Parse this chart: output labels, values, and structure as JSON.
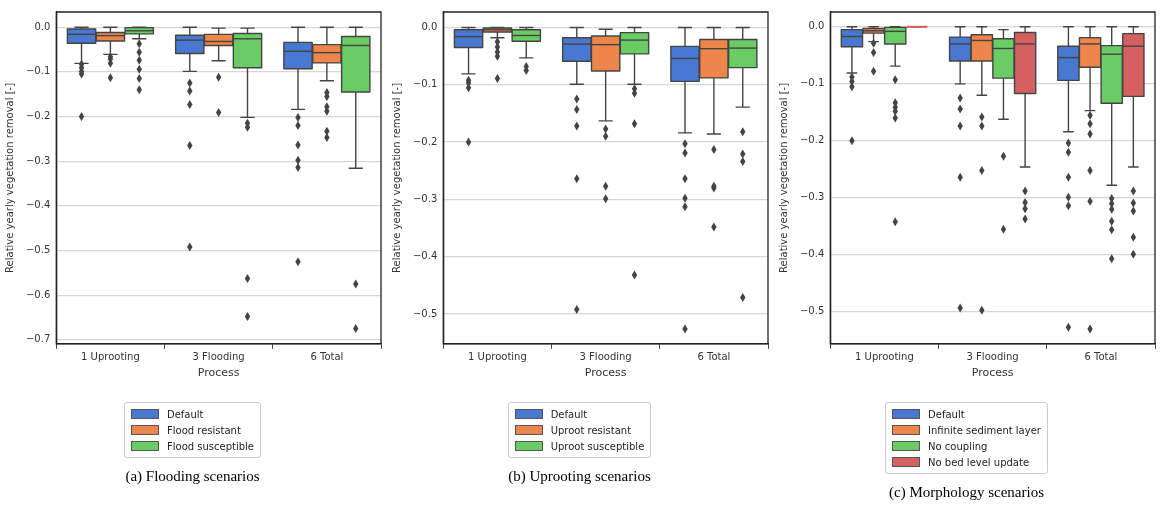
{
  "chart_data": [
    {
      "type": "box",
      "xlabel": "Process",
      "ylabel": "Relative yearly vegetation removal [-]",
      "categories": [
        "1 Uprooting",
        "3 Flooding",
        "6 Total"
      ],
      "ylim": [
        -0.709,
        0.034
      ],
      "yticks": [
        {
          "value": 0,
          "label": "0.0"
        },
        {
          "value": -0.1,
          "label": "−0.1"
        },
        {
          "value": -0.2,
          "label": "−0.2"
        },
        {
          "value": -0.3,
          "label": "−0.3"
        },
        {
          "value": -0.4,
          "label": "−0.4"
        },
        {
          "value": -0.5,
          "label": "−0.5"
        },
        {
          "value": -0.6,
          "label": "−0.6"
        },
        {
          "value": -0.7,
          "label": "−0.7"
        }
      ],
      "grid": "y",
      "legend": "bottom",
      "marker": "diamond",
      "annotations": [
        "(a) Flooding scenarios"
      ],
      "series": [
        {
          "name": "Default",
          "color": "#4878d0",
          "boxes": [
            {
              "low": -0.081,
              "q1": -0.036,
              "median": -0.016,
              "q3": -0.004,
              "high": 0,
              "outliers": [
                -0.083,
                -0.091,
                -0.099,
                -0.105,
                -0.2
              ]
            },
            {
              "low": -0.099,
              "q1": -0.059,
              "median": -0.029,
              "q3": -0.018,
              "high": 0,
              "outliers": [
                -0.125,
                -0.143,
                -0.173,
                -0.265,
                -0.492
              ]
            },
            {
              "low": -0.184,
              "q1": -0.093,
              "median": -0.054,
              "q3": -0.034,
              "high": 0,
              "outliers": [
                -0.202,
                -0.22,
                -0.264,
                -0.298,
                -0.314,
                -0.525
              ]
            }
          ]
        },
        {
          "name": "Flood resistant",
          "color": "#ee854a",
          "boxes": [
            {
              "low": -0.061,
              "q1": -0.031,
              "median": -0.019,
              "q3": -0.012,
              "high": 0,
              "outliers": [
                -0.066,
                -0.071,
                -0.081,
                -0.113
              ]
            },
            {
              "low": -0.075,
              "q1": -0.041,
              "median": -0.032,
              "q3": -0.016,
              "high": -0.002,
              "outliers": [
                -0.112,
                -0.191
              ]
            },
            {
              "low": -0.12,
              "q1": -0.08,
              "median": -0.057,
              "q3": -0.039,
              "high": 0,
              "outliers": [
                -0.146,
                -0.155,
                -0.178,
                -0.188,
                -0.233,
                -0.247
              ]
            }
          ]
        },
        {
          "name": "Flood susceptible",
          "color": "#6acc64",
          "boxes": [
            {
              "low": -0.026,
              "q1": -0.015,
              "median": -0.008,
              "q3": -0.001,
              "high": 0,
              "outliers": [
                -0.037,
                -0.056,
                -0.074,
                -0.094,
                -0.115,
                -0.14
              ]
            },
            {
              "low": -0.202,
              "q1": -0.091,
              "median": -0.026,
              "q3": -0.014,
              "high": -0.002,
              "outliers": [
                -0.215,
                -0.224,
                -0.563,
                -0.648
              ]
            },
            {
              "low": -0.316,
              "q1": -0.145,
              "median": -0.041,
              "q3": -0.021,
              "high": 0,
              "outliers": [
                -0.575,
                -0.675
              ]
            }
          ]
        }
      ]
    },
    {
      "type": "box",
      "xlabel": "Process",
      "ylabel": "Relative yearly vegetation removal [-]",
      "categories": [
        "1 Uprooting",
        "3 Flooding",
        "6 Total"
      ],
      "ylim": [
        -0.552,
        0.027
      ],
      "yticks": [
        {
          "value": 0,
          "label": "0.0"
        },
        {
          "value": -0.1,
          "label": "−0.1"
        },
        {
          "value": -0.2,
          "label": "−0.2"
        },
        {
          "value": -0.3,
          "label": "−0.3"
        },
        {
          "value": -0.4,
          "label": "−0.4"
        },
        {
          "value": -0.5,
          "label": "−0.5"
        }
      ],
      "grid": "y",
      "legend": "bottom",
      "marker": "diamond",
      "annotations": [
        "(b) Uprooting scenarios"
      ],
      "series": [
        {
          "name": "Default",
          "color": "#4878d0",
          "boxes": [
            {
              "low": -0.081,
              "q1": -0.035,
              "median": -0.016,
              "q3": -0.004,
              "high": 0,
              "outliers": [
                -0.092,
                -0.097,
                -0.105,
                -0.2
              ]
            },
            {
              "low": -0.099,
              "q1": -0.059,
              "median": -0.029,
              "q3": -0.018,
              "high": 0,
              "outliers": [
                -0.125,
                -0.143,
                -0.172,
                -0.264,
                -0.492
              ]
            },
            {
              "low": -0.184,
              "q1": -0.094,
              "median": -0.054,
              "q3": -0.033,
              "high": 0,
              "outliers": [
                -0.203,
                -0.219,
                -0.264,
                -0.298,
                -0.313,
                -0.526
              ]
            }
          ]
        },
        {
          "name": "Uproot resistant",
          "color": "#ee854a",
          "boxes": [
            {
              "low": -0.018,
              "q1": -0.008,
              "median": -0.004,
              "q3": -0.001,
              "high": 0,
              "outliers": [
                -0.025,
                -0.034,
                -0.043,
                -0.05,
                -0.089
              ]
            },
            {
              "low": -0.163,
              "q1": -0.076,
              "median": -0.03,
              "q3": -0.015,
              "high": -0.003,
              "outliers": [
                -0.177,
                -0.19,
                -0.277,
                -0.299
              ]
            },
            {
              "low": -0.186,
              "q1": -0.088,
              "median": -0.037,
              "q3": -0.021,
              "high": 0,
              "outliers": [
                -0.213,
                -0.277,
                -0.28,
                -0.348
              ]
            }
          ]
        },
        {
          "name": "Uproot susceptible",
          "color": "#6acc64",
          "boxes": [
            {
              "low": -0.053,
              "q1": -0.024,
              "median": -0.014,
              "q3": -0.004,
              "high": 0,
              "outliers": [
                -0.068,
                -0.075
              ]
            },
            {
              "low": -0.099,
              "q1": -0.046,
              "median": -0.022,
              "q3": -0.009,
              "high": 0,
              "outliers": [
                -0.107,
                -0.115,
                -0.168,
                -0.432
              ]
            },
            {
              "low": -0.139,
              "q1": -0.07,
              "median": -0.036,
              "q3": -0.021,
              "high": 0,
              "outliers": [
                -0.182,
                -0.221,
                -0.234,
                -0.471
              ]
            }
          ]
        }
      ]
    },
    {
      "type": "box",
      "xlabel": "Process",
      "ylabel": "Relative yearly vegetation removal [-]",
      "categories": [
        "1 Uprooting",
        "3 Flooding",
        "6 Total"
      ],
      "ylim": [
        -0.556,
        0.026
      ],
      "yticks": [
        {
          "value": 0,
          "label": "0.0"
        },
        {
          "value": -0.1,
          "label": "−0.1"
        },
        {
          "value": -0.2,
          "label": "−0.2"
        },
        {
          "value": -0.3,
          "label": "−0.3"
        },
        {
          "value": -0.4,
          "label": "−0.4"
        },
        {
          "value": -0.5,
          "label": "−0.5"
        }
      ],
      "grid": "y",
      "legend": "bottom",
      "marker": "diamond",
      "annotations": [
        "(c) Morphology scenarios"
      ],
      "series": [
        {
          "name": "Default",
          "color": "#4878d0",
          "boxes": [
            {
              "low": -0.081,
              "q1": -0.035,
              "median": -0.017,
              "q3": -0.005,
              "high": 0,
              "outliers": [
                -0.088,
                -0.096,
                -0.105,
                -0.2
              ]
            },
            {
              "low": -0.1,
              "q1": -0.06,
              "median": -0.03,
              "q3": -0.018,
              "high": 0,
              "outliers": [
                -0.125,
                -0.144,
                -0.174,
                -0.264,
                -0.493
              ]
            },
            {
              "low": -0.184,
              "q1": -0.094,
              "median": -0.054,
              "q3": -0.034,
              "high": 0,
              "outliers": [
                -0.204,
                -0.22,
                -0.264,
                -0.299,
                -0.314,
                -0.527
              ]
            }
          ]
        },
        {
          "name": "Infinite sediment layer",
          "color": "#ee854a",
          "boxes": [
            {
              "low": -0.026,
              "q1": -0.011,
              "median": -0.007,
              "q3": -0.003,
              "high": 0,
              "outliers": [
                -0.029,
                -0.045,
                -0.078
              ]
            },
            {
              "low": -0.12,
              "q1": -0.06,
              "median": -0.024,
              "q3": -0.014,
              "high": 0,
              "outliers": [
                -0.158,
                -0.174,
                -0.252,
                -0.497
              ]
            },
            {
              "low": -0.147,
              "q1": -0.071,
              "median": -0.03,
              "q3": -0.019,
              "high": 0,
              "outliers": [
                -0.155,
                -0.17,
                -0.188,
                -0.252,
                -0.306,
                -0.53
              ]
            }
          ]
        },
        {
          "name": "No coupling",
          "color": "#6acc64",
          "boxes": [
            {
              "low": -0.069,
              "q1": -0.03,
              "median": -0.008,
              "q3": -0.001,
              "high": 0,
              "outliers": [
                -0.093,
                -0.133,
                -0.141,
                -0.148,
                -0.16,
                -0.342
              ]
            },
            {
              "low": -0.162,
              "q1": -0.09,
              "median": -0.038,
              "q3": -0.021,
              "high": -0.005,
              "outliers": [
                -0.227,
                -0.355
              ]
            },
            {
              "low": -0.278,
              "q1": -0.134,
              "median": -0.048,
              "q3": -0.033,
              "high": 0,
              "outliers": [
                -0.301,
                -0.31,
                -0.32,
                -0.341,
                -0.356,
                -0.407
              ]
            }
          ]
        },
        {
          "name": "No bed level update",
          "color": "#d65f5f",
          "boxes": [
            {
              "low": 0,
              "q1": 0,
              "median": 0,
              "q3": 0,
              "high": 0
            },
            {
              "low": -0.246,
              "q1": -0.117,
              "median": -0.03,
              "q3": -0.01,
              "high": 0,
              "outliers": [
                -0.288,
                -0.308,
                -0.319,
                -0.337
              ]
            },
            {
              "low": -0.246,
              "q1": -0.122,
              "median": -0.034,
              "q3": -0.012,
              "high": 0,
              "outliers": [
                -0.288,
                -0.309,
                -0.323,
                -0.369,
                -0.399
              ]
            }
          ]
        }
      ]
    }
  ]
}
